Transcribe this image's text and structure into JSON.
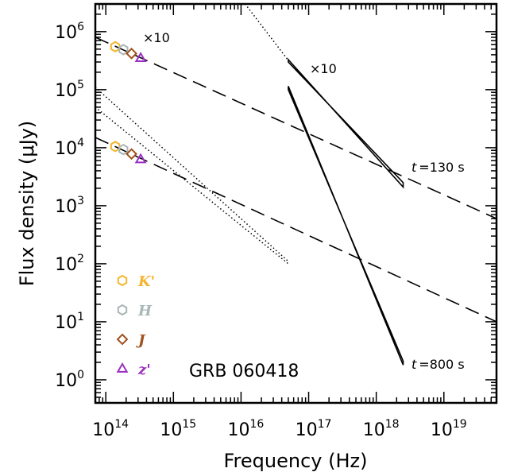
{
  "chart_data": {
    "type": "scatter",
    "title": "GRB 060418",
    "xlabel": "Frequency (Hz)",
    "ylabel": "Flux density (μJy)",
    "x_scale": "log",
    "y_scale": "log",
    "xlim": [
      70000000000000.0,
      6e+19
    ],
    "ylim": [
      0.4,
      3000000.0
    ],
    "grid": false,
    "legend_placement": "bottom-left",
    "x_ticks": [
      {
        "base": "10",
        "exp": "14",
        "value": 100000000000000.0
      },
      {
        "base": "10",
        "exp": "15",
        "value": 1000000000000000.0
      },
      {
        "base": "10",
        "exp": "16",
        "value": 1e+16
      },
      {
        "base": "10",
        "exp": "17",
        "value": 1e+17
      },
      {
        "base": "10",
        "exp": "18",
        "value": 1e+18
      },
      {
        "base": "10",
        "exp": "19",
        "value": 1e+19
      }
    ],
    "y_ticks": [
      {
        "base": "10",
        "exp": "0",
        "value": 1
      },
      {
        "base": "10",
        "exp": "1",
        "value": 10
      },
      {
        "base": "10",
        "exp": "2",
        "value": 100
      },
      {
        "base": "10",
        "exp": "3",
        "value": 1000
      },
      {
        "base": "10",
        "exp": "4",
        "value": 10000
      },
      {
        "base": "10",
        "exp": "5",
        "value": 100000
      },
      {
        "base": "10",
        "exp": "6",
        "value": 1000000
      }
    ],
    "series": [
      {
        "name": "K'",
        "color": "#f5b52e",
        "marker": "hexagon",
        "points": [
          {
            "x": 138000000000000.0,
            "y": 550000
          },
          {
            "x": 138000000000000.0,
            "y": 10500
          }
        ]
      },
      {
        "name": "H",
        "color": "#a9b6b6",
        "marker": "hexagon",
        "points": [
          {
            "x": 182000000000000.0,
            "y": 490000
          },
          {
            "x": 182000000000000.0,
            "y": 9300
          }
        ]
      },
      {
        "name": "J",
        "color": "#a0521d",
        "marker": "diamond",
        "points": [
          {
            "x": 240000000000000.0,
            "y": 420000
          },
          {
            "x": 240000000000000.0,
            "y": 7800
          }
        ]
      },
      {
        "name": "z'",
        "color": "#9b30c0",
        "marker": "triangle",
        "points": [
          {
            "x": 328000000000000.0,
            "y": 350000
          },
          {
            "x": 328000000000000.0,
            "y": 6300
          }
        ]
      }
    ],
    "model_lines": [
      {
        "style": "dashed",
        "epoch": "130 s",
        "from": {
          "x": 70000000000000.0,
          "y": 800000
        },
        "to": {
          "x": 6e+19,
          "y": 600
        }
      },
      {
        "style": "dashed",
        "epoch": "800 s",
        "from": {
          "x": 70000000000000.0,
          "y": 15000
        },
        "to": {
          "x": 6e+19,
          "y": 10
        }
      },
      {
        "style": "dotted",
        "epoch": "130 s",
        "from": {
          "x": 1.15e+16,
          "y": 3000000.0
        },
        "to": {
          "x": 5e+16,
          "y": 320000
        }
      },
      {
        "style": "dotted",
        "epoch": "800 s",
        "from": {
          "x": 70000000000000.0,
          "y": 110000
        },
        "to": {
          "x": 5e+16,
          "y": 110
        }
      },
      {
        "style": "dotted",
        "epoch": "800 s",
        "from": {
          "x": 70000000000000.0,
          "y": 50000
        },
        "to": {
          "x": 5e+16,
          "y": 100
        }
      }
    ],
    "xray_bowties": [
      {
        "epoch": "130 s",
        "x_range": [
          5e+16,
          2.5e+18
        ],
        "y_start_a": 330000,
        "y_start_b": 300000,
        "y_end_a": 2100,
        "y_end_b": 2500
      },
      {
        "epoch": "800 s",
        "x_range": [
          5e+16,
          2.5e+18
        ],
        "y_start_a": 115000,
        "y_start_b": 100000,
        "y_end_a": 1.8,
        "y_end_b": 2.1
      }
    ],
    "annotations": {
      "x10_optical": "×10",
      "x10_xray": "×10",
      "t_label": "t",
      "t_130": "=130 s",
      "t_800": "=800 s"
    }
  }
}
